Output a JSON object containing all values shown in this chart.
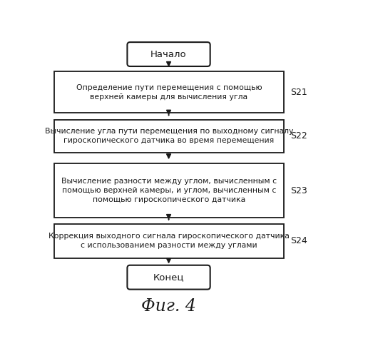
{
  "title": "Фиг. 4",
  "start_label": "Начало",
  "end_label": "Конец",
  "boxes": [
    {
      "text": "Определение пути перемещения с помощью\nверхней камеры для вычисления угла",
      "label": "S21"
    },
    {
      "text": "Вычисление угла пути перемещения по выходному сигналу\nгироскопического датчика во время перемещения",
      "label": "S22"
    },
    {
      "text": "Вычисление разности между углом, вычисленным с\nпомощью верхней камеры, и углом, вычисленным с\nпомощью гироскопического датчика",
      "label": "S23"
    },
    {
      "text": "Коррекция выходного сигнала гироскопического датчика\nс использованием разности между углами",
      "label": "S24"
    }
  ],
  "bg_color": "#ffffff",
  "box_fill": "#ffffff",
  "box_edge": "#1a1a1a",
  "text_color": "#1a1a1a",
  "arrow_color": "#1a1a1a",
  "font_size": 7.8,
  "label_font_size": 9.0,
  "title_font_size": 17,
  "capsule_font_size": 9.5
}
